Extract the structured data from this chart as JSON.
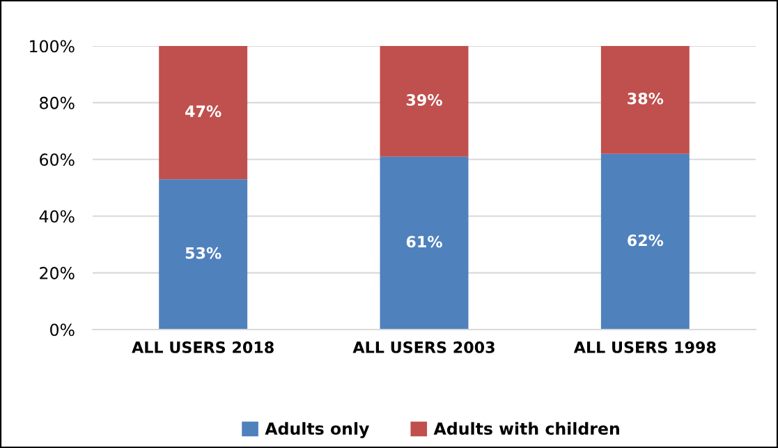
{
  "chart_data": {
    "type": "bar",
    "stacked": true,
    "categories": [
      "ALL USERS 2018",
      "ALL USERS 2003",
      "ALL USERS 1998"
    ],
    "series": [
      {
        "name": "Adults only",
        "color": "#4f81bd",
        "values": [
          53,
          61,
          62
        ],
        "value_labels": [
          "53%",
          "61%",
          "62%"
        ]
      },
      {
        "name": "Adults with children",
        "color": "#c0504d",
        "values": [
          47,
          39,
          38
        ],
        "value_labels": [
          "47%",
          "39%",
          "38%"
        ]
      }
    ],
    "ylim": [
      0,
      100
    ],
    "yticks": [
      {
        "value": 0,
        "label": "0%"
      },
      {
        "value": 20,
        "label": "20%"
      },
      {
        "value": 40,
        "label": "40%"
      },
      {
        "value": 60,
        "label": "60%"
      },
      {
        "value": 80,
        "label": "80%"
      },
      {
        "value": 100,
        "label": "100%"
      }
    ],
    "grid": "y",
    "legend": "bottom"
  }
}
